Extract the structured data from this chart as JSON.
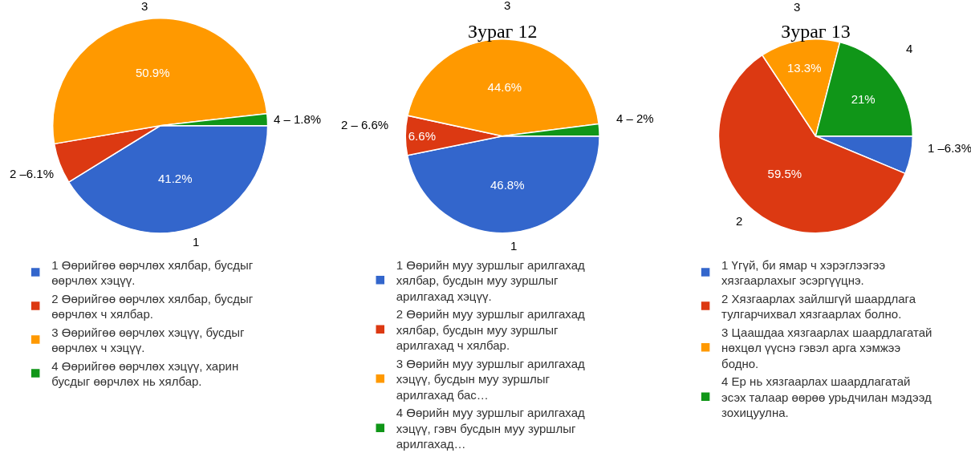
{
  "chart_data": [
    {
      "type": "pie",
      "legend": "bottom",
      "categories": [
        "1 Өөрийгөө өөрчлөх хялбар, бусдыг өөрчлөх хэцүү.",
        "2 Өөрийгөө өөрчлөх хялбар, бусдыг өөрчлөх ч хялбар.",
        "3 Өөрийгөө өөрчлөх хэцүү, бусдыг өөрчлөх ч хэцүү.",
        "4 Өөрийгөө өөрчлөх хэцүү, харин бусдыг өөрчлөх нь хялбар."
      ],
      "values": [
        41.2,
        6.1,
        50.9,
        1.8
      ],
      "colors": [
        "#3366cc",
        "#dc3912",
        "#ff9900",
        "#109618"
      ],
      "value_labels": [
        "41.2%",
        null,
        "50.9%",
        null
      ],
      "annotations": [
        "1",
        "2 –6.1%",
        "3",
        "4 – 1.8%"
      ]
    },
    {
      "type": "pie",
      "title": "Зураг 12",
      "legend": "bottom",
      "categories": [
        "1 Өөрийн муу зуршлыг арилгахад хялбар, бусдын муу зуршлыг арилгахад хэцүү.",
        "2 Өөрийн муу зуршлыг арилгахад хялбар, бусдын муу зуршлыг арилгахад ч хялбар.",
        "3 Өөрийн муу зуршлыг арилгахад хэцүү, бусдын муу зуршлыг арилгахад бас…",
        "4 Өөрийн муу зуршлыг арилгахад хэцүү, гэвч бусдын муу зуршлыг арилгахад…"
      ],
      "values": [
        46.8,
        6.6,
        44.6,
        2
      ],
      "colors": [
        "#3366cc",
        "#dc3912",
        "#ff9900",
        "#109618"
      ],
      "value_labels": [
        "46.8%",
        "6.6%",
        "44.6%",
        null
      ],
      "annotations": [
        "1",
        "2 – 6.6%",
        "3",
        "4 – 2%"
      ]
    },
    {
      "type": "pie",
      "title": "Зураг 13",
      "legend": "bottom",
      "categories": [
        "1 Үгүй, би ямар ч хэрэглээгээ хязгаарлахыг эсэргүүцнэ.",
        "2 Хязгаарлах зайлшгүй шаардлага тулгарчихвал хязгаарлах болно.",
        "3 Цаашдаа хязгаарлах шаардлагатай нөхцөл үүснэ гэвэл арга хэмжээ бодно.",
        "4 Ер нь хязгаарлах шаардлагатай эсэх талаар өөрөө урьдчилан мэдээд зохицуулна."
      ],
      "values": [
        6.3,
        59.5,
        13.3,
        21
      ],
      "colors": [
        "#3366cc",
        "#dc3912",
        "#ff9900",
        "#109618"
      ],
      "value_labels": [
        null,
        "59.5%",
        "13.3%",
        "21%"
      ],
      "annotations": [
        "1 –6.3%",
        "2",
        "3",
        "4"
      ]
    }
  ]
}
